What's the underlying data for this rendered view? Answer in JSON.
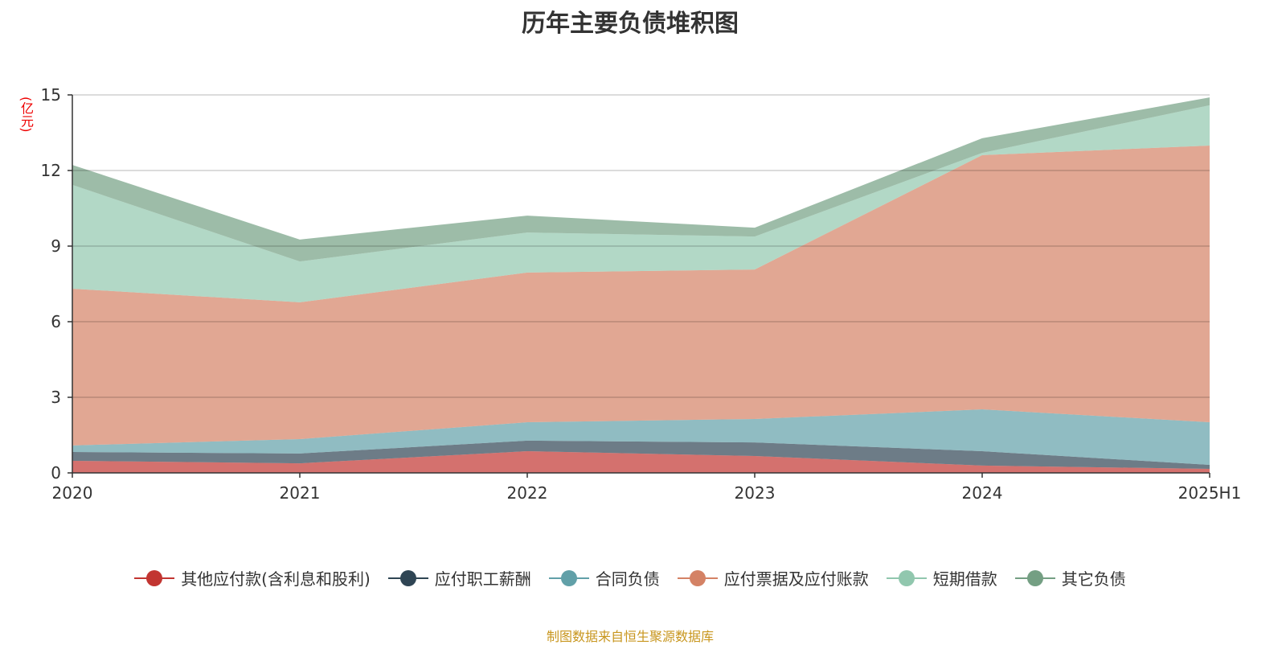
{
  "chart_data": {
    "type": "area",
    "stacked": true,
    "title": "历年主要负债堆积图",
    "ylabel": "(亿元)",
    "xlabel": "",
    "categories": [
      "2020",
      "2021",
      "2022",
      "2023",
      "2024",
      "2025H1"
    ],
    "ylim": [
      0,
      15
    ],
    "yticks": [
      0,
      3,
      6,
      9,
      12,
      15
    ],
    "grid": true,
    "legend_position": "bottom",
    "series": [
      {
        "name": "其他应付款(含利息和股利)",
        "color": "#c23531",
        "values": [
          0.48,
          0.38,
          0.86,
          0.67,
          0.29,
          0.16
        ]
      },
      {
        "name": "应付职工薪酬",
        "color": "#2f4554",
        "values": [
          0.35,
          0.39,
          0.42,
          0.54,
          0.57,
          0.16
        ]
      },
      {
        "name": "合同负债",
        "color": "#61a0a8",
        "values": [
          0.26,
          0.57,
          0.73,
          0.93,
          1.66,
          1.69
        ]
      },
      {
        "name": "应付票据及应付账款",
        "color": "#d48265",
        "values": [
          6.22,
          5.43,
          5.94,
          5.93,
          10.09,
          10.98
        ]
      },
      {
        "name": "短期借款",
        "color": "#91c7ae",
        "values": [
          4.12,
          1.62,
          1.59,
          1.31,
          0.09,
          1.6
        ]
      },
      {
        "name": "其它负债",
        "color": "#749f83",
        "values": [
          0.79,
          0.87,
          0.67,
          0.35,
          0.58,
          0.31
        ]
      }
    ]
  },
  "source": "制图数据来自恒生聚源数据库"
}
